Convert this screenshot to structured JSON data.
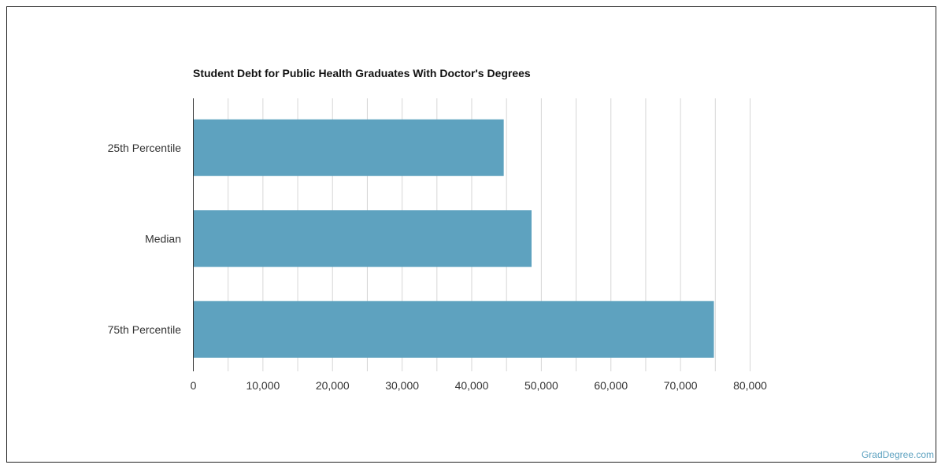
{
  "chart_data": {
    "type": "bar",
    "orientation": "horizontal",
    "title": "Student Debt for Public Health Graduates With Doctor's Degrees",
    "categories": [
      "25th Percentile",
      "Median",
      "75th Percentile"
    ],
    "values": [
      44600,
      48600,
      74800
    ],
    "xlim": [
      0,
      80000
    ],
    "x_ticks": [
      0,
      10000,
      20000,
      30000,
      40000,
      50000,
      60000,
      70000,
      80000
    ],
    "x_tick_labels": [
      "0",
      "10,000",
      "20,000",
      "30,000",
      "40,000",
      "50,000",
      "60,000",
      "70,000",
      "80,000"
    ],
    "xlabel": "",
    "ylabel": "",
    "grid": true,
    "bar_color": "#5ea2bf",
    "grid_color": "#d6d6d6"
  },
  "source": {
    "label": "GradDegree.com",
    "color": "#5ea2c0"
  }
}
